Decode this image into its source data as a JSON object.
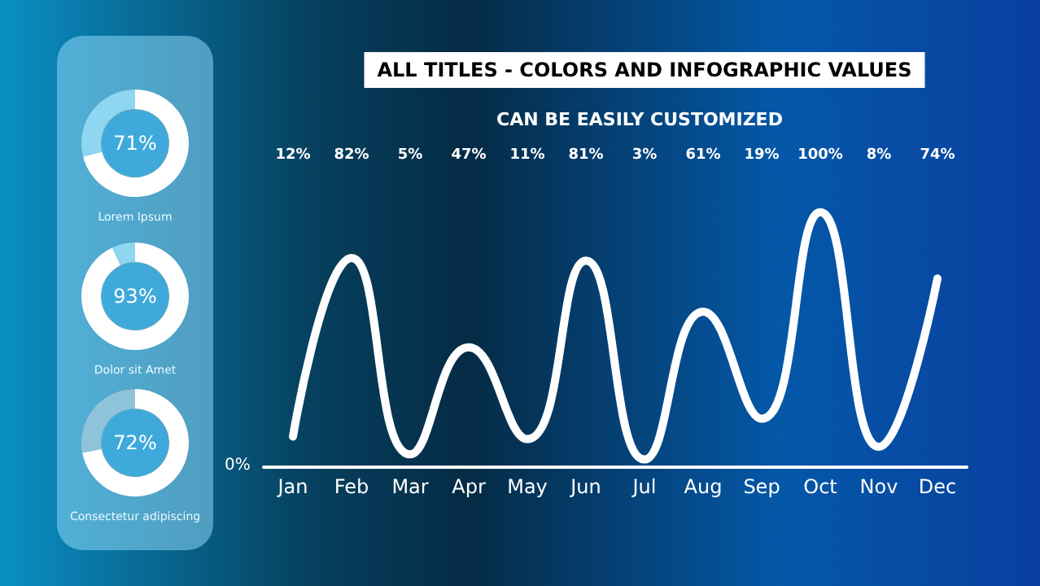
{
  "chart_data": [
    {
      "type": "donut",
      "title": "Lorem Ipsum",
      "categories": [
        null,
        null
      ],
      "values": [
        71,
        29
      ],
      "colors": [
        "#ffffff",
        "#8fd6f0"
      ],
      "value_labels": [
        "71%",
        null
      ]
    },
    {
      "type": "donut",
      "title": "Dolor sit Amet",
      "categories": [
        null,
        null
      ],
      "values": [
        93,
        7
      ],
      "colors": [
        "#ffffff",
        "#8fd6f0"
      ],
      "value_labels": [
        "93%",
        null
      ]
    },
    {
      "type": "donut",
      "title": "Consectetur adipiscing",
      "categories": [
        null,
        null
      ],
      "values": [
        72,
        28
      ],
      "colors": [
        "#ffffff",
        "#8fc3da"
      ],
      "value_labels": [
        "72%",
        null
      ]
    },
    {
      "type": "line",
      "title": "ALL TITLES - COLORS AND INFOGRAPHIC VALUES",
      "subtitle": "CAN BE EASILY CUSTOMIZED",
      "categories": [
        "Jan",
        "Feb",
        "Mar",
        "Apr",
        "May",
        "Jun",
        "Jul",
        "Aug",
        "Sep",
        "Oct",
        "Nov",
        "Dec"
      ],
      "series": [
        {
          "color": "#ffffff",
          "values": [
            12,
            82,
            5,
            47,
            11,
            81,
            3,
            61,
            19,
            100,
            8,
            74
          ],
          "value_labels": [
            "12%",
            "82%",
            "5%",
            "47%",
            "11%",
            "81%",
            "3%",
            "61%",
            "19%",
            "100%",
            "8%",
            "74%"
          ]
        }
      ],
      "annotations": [
        "0%"
      ],
      "marker": "none",
      "line_style": "solid"
    }
  ]
}
